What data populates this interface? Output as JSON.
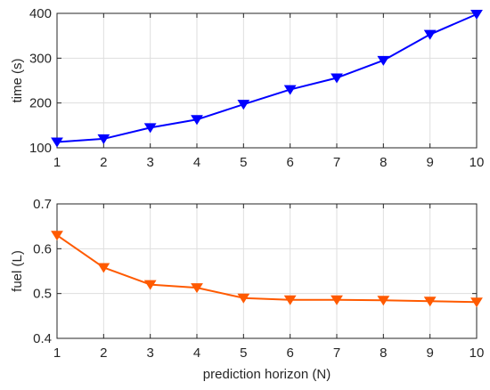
{
  "chart_data": [
    {
      "type": "line",
      "title": "",
      "xlabel": "",
      "ylabel": "time (s)",
      "x": [
        1,
        2,
        3,
        4,
        5,
        6,
        7,
        8,
        9,
        10
      ],
      "xlim": [
        1,
        10
      ],
      "ylim": [
        100,
        400
      ],
      "xticks": [
        1,
        2,
        3,
        4,
        5,
        6,
        7,
        8,
        9,
        10
      ],
      "yticks": [
        100,
        200,
        300,
        400
      ],
      "grid": true,
      "series": [
        {
          "values": [
            113,
            120,
            145,
            163,
            197,
            230,
            256,
            295,
            353,
            398
          ],
          "color": "#0000ff",
          "marker": "down-triangle"
        }
      ]
    },
    {
      "type": "line",
      "title": "",
      "xlabel": "prediction horizon (N)",
      "ylabel": "fuel (L)",
      "x": [
        1,
        2,
        3,
        4,
        5,
        6,
        7,
        8,
        9,
        10
      ],
      "xlim": [
        1,
        10
      ],
      "ylim": [
        0.4,
        0.7
      ],
      "xticks": [
        1,
        2,
        3,
        4,
        5,
        6,
        7,
        8,
        9,
        10
      ],
      "yticks": [
        0.4,
        0.5,
        0.6,
        0.7
      ],
      "grid": true,
      "series": [
        {
          "values": [
            0.63,
            0.558,
            0.52,
            0.513,
            0.49,
            0.486,
            0.486,
            0.485,
            0.483,
            0.481
          ],
          "color": "#ff5a00",
          "marker": "down-triangle"
        }
      ]
    }
  ]
}
